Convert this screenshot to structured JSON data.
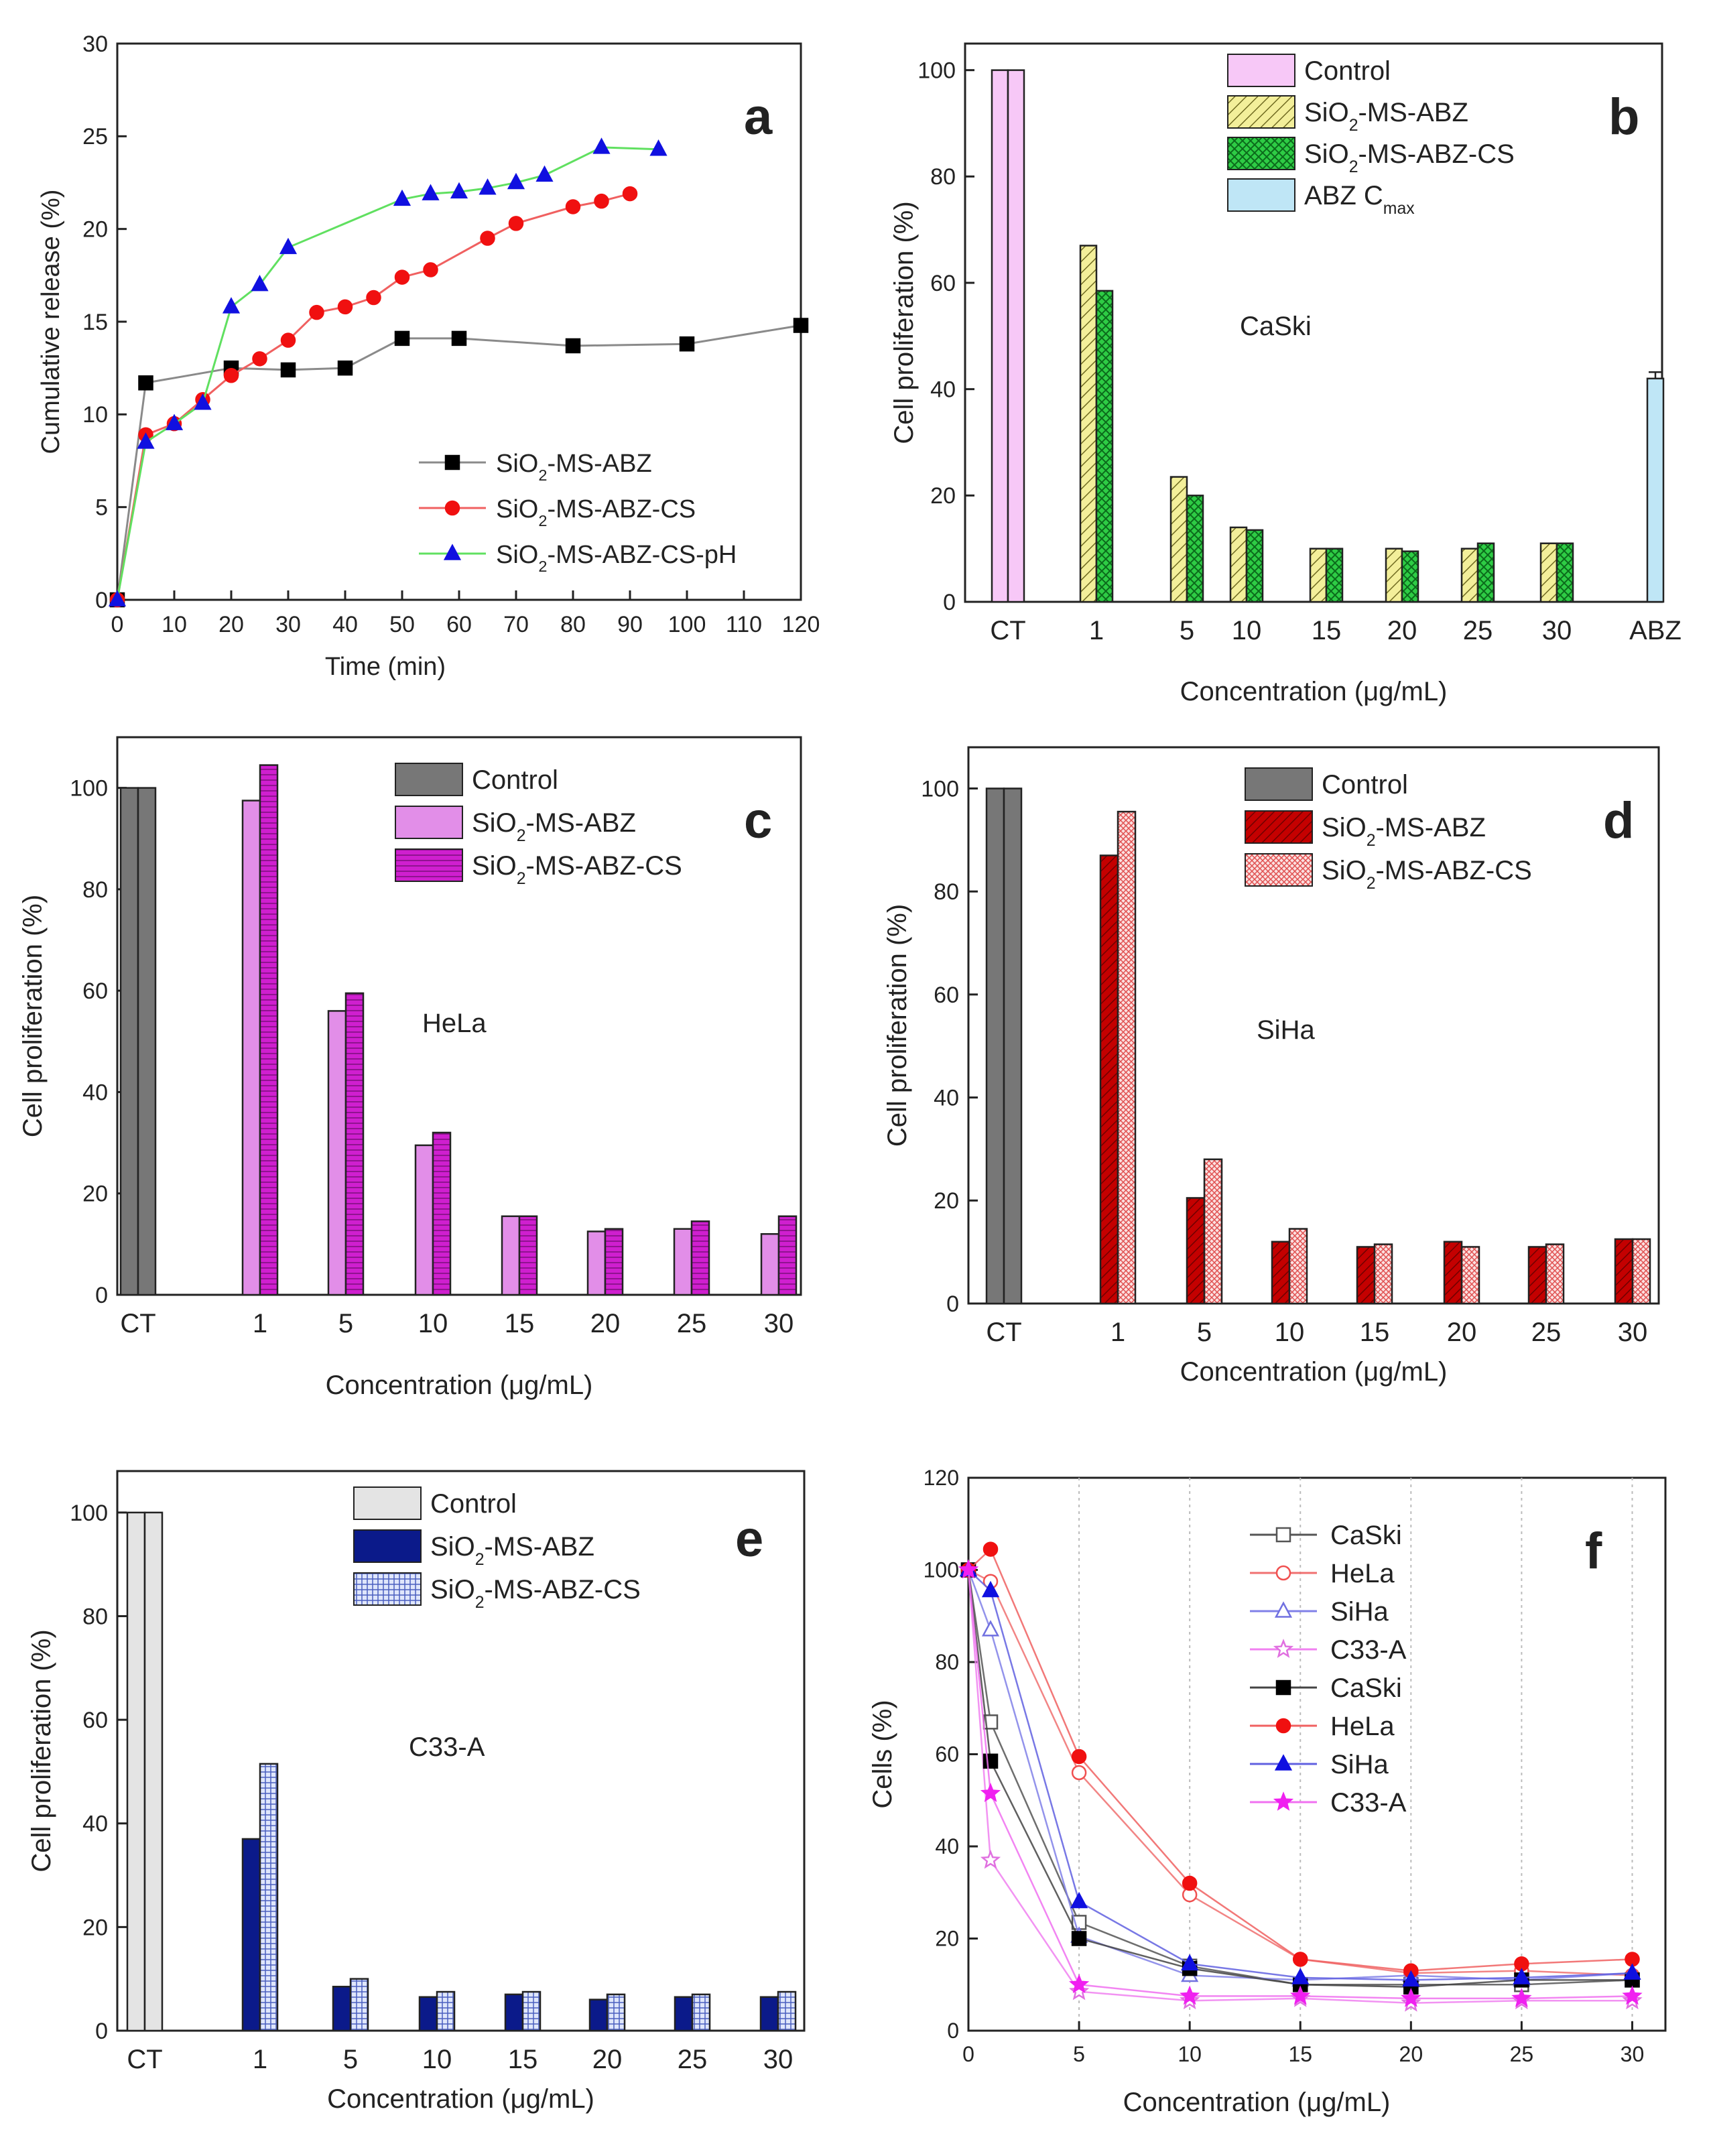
{
  "colors": {
    "black_series": "#000000",
    "red_series": "#f01010",
    "blue_series": "#1010e0",
    "green_line": "#60e060",
    "control_pink": "#f7c8f7",
    "yellow_hatch": "#f3ef9a",
    "green_bar": "#2ecc45",
    "abz_cyan": "#bfe6f6",
    "gray_control": "#777777",
    "violet": "#e28ee8",
    "magenta": "#cf1fcf",
    "dark_red": "#c40000",
    "pink_pattern": "#f6b0b0",
    "light_gray": "#e4e4e4",
    "navy": "#0b1a8a",
    "light_blue": "#b8c8f5"
  },
  "chart_data": [
    {
      "panel": "a",
      "type": "line",
      "title": "",
      "xlabel": "Time (min)",
      "ylabel": "Cumulative release (%)",
      "xlim": [
        0,
        120
      ],
      "ylim": [
        0,
        30
      ],
      "xticks": [
        "0",
        "10",
        "20",
        "30",
        "40",
        "50",
        "60",
        "70",
        "80",
        "90",
        "100",
        "110",
        "120"
      ],
      "yticks": [
        "0",
        "5",
        "10",
        "15",
        "20",
        "25",
        "30"
      ],
      "legend": [
        "SiO2-MS-ABZ",
        "SiO2-MS-ABZ-CS",
        "SiO2-MS-ABZ-CS-pH"
      ],
      "series": [
        {
          "name": "SiO2-MS-ABZ",
          "marker": "square",
          "color": "#000000",
          "line": "#8a8a8a",
          "x": [
            0,
            5,
            20,
            30,
            40,
            50,
            60,
            80,
            100,
            120
          ],
          "y": [
            0,
            11.7,
            12.5,
            12.4,
            12.5,
            14.1,
            14.1,
            13.7,
            13.8,
            14.8
          ]
        },
        {
          "name": "SiO2-MS-ABZ-CS",
          "marker": "circle",
          "color": "#f01010",
          "line": "#f06060",
          "x": [
            0,
            5,
            10,
            15,
            20,
            25,
            30,
            35,
            40,
            45,
            50,
            55,
            65,
            70,
            80,
            85,
            90
          ],
          "y": [
            0,
            8.9,
            9.5,
            10.8,
            12.1,
            13.0,
            14.0,
            15.5,
            15.8,
            16.3,
            17.4,
            17.8,
            19.5,
            20.3,
            21.2,
            21.5,
            21.9
          ]
        },
        {
          "name": "SiO2-MS-ABZ-CS-pH",
          "marker": "triangle",
          "color": "#1010e0",
          "line": "#60e060",
          "x": [
            0,
            5,
            10,
            15,
            20,
            25,
            30,
            50,
            55,
            60,
            65,
            70,
            75,
            85,
            95
          ],
          "y": [
            0,
            8.5,
            9.5,
            10.6,
            15.8,
            17.0,
            19.0,
            21.6,
            21.9,
            22.0,
            22.2,
            22.5,
            22.9,
            24.4,
            24.3
          ]
        }
      ]
    },
    {
      "panel": "b",
      "type": "bar",
      "annotation": "CaSki",
      "xlabel": "Concentration (μg/mL)",
      "ylabel": "Cell proliferation (%)",
      "ylim": [
        0,
        105
      ],
      "yticks": [
        "0",
        "20",
        "40",
        "60",
        "80",
        "100"
      ],
      "categories": [
        "CT",
        "1",
        "5",
        "10",
        "15",
        "20",
        "25",
        "30",
        "ABZ"
      ],
      "legend": [
        "Control",
        "SiO2-MS-ABZ",
        "SiO2-MS-ABZ-CS",
        "ABZ Cmax"
      ],
      "series": [
        {
          "name": "Control",
          "values": [
            100,
            null,
            null,
            null,
            null,
            null,
            null,
            null,
            null
          ]
        },
        {
          "name": "SiO2-MS-ABZ",
          "values": [
            null,
            67,
            23.5,
            14,
            10,
            10,
            10,
            11,
            null
          ]
        },
        {
          "name": "SiO2-MS-ABZ-CS",
          "values": [
            null,
            58.5,
            20,
            13.5,
            10,
            9.5,
            11,
            11,
            null
          ]
        },
        {
          "name": "ABZ Cmax",
          "values": [
            null,
            null,
            null,
            null,
            null,
            null,
            null,
            null,
            42
          ]
        }
      ]
    },
    {
      "panel": "c",
      "type": "bar",
      "annotation": "HeLa",
      "xlabel": "Concentration (μg/mL)",
      "ylabel": "Cell proliferation (%)",
      "ylim": [
        0,
        110
      ],
      "yticks": [
        "0",
        "20",
        "40",
        "60",
        "80",
        "100"
      ],
      "categories": [
        "CT",
        "1",
        "5",
        "10",
        "15",
        "20",
        "25",
        "30"
      ],
      "legend": [
        "Control",
        "SiO2-MS-ABZ",
        "SiO2-MS-ABZ-CS"
      ],
      "series": [
        {
          "name": "Control",
          "values": [
            100,
            null,
            null,
            null,
            null,
            null,
            null,
            null
          ]
        },
        {
          "name": "SiO2-MS-ABZ",
          "values": [
            null,
            97.5,
            56,
            29.5,
            15.5,
            12.5,
            13,
            12
          ]
        },
        {
          "name": "SiO2-MS-ABZ-CS",
          "values": [
            null,
            104.5,
            59.5,
            32,
            15.5,
            13,
            14.5,
            15.5
          ]
        }
      ]
    },
    {
      "panel": "d",
      "type": "bar",
      "annotation": "SiHa",
      "xlabel": "Concentration (μg/mL)",
      "ylabel": "Cell proliferation (%)",
      "ylim": [
        0,
        108
      ],
      "yticks": [
        "0",
        "20",
        "40",
        "60",
        "80",
        "100"
      ],
      "categories": [
        "CT",
        "1",
        "5",
        "10",
        "15",
        "20",
        "25",
        "30"
      ],
      "legend": [
        "Control",
        "SiO2-MS-ABZ",
        "SiO2-MS-ABZ-CS"
      ],
      "series": [
        {
          "name": "Control",
          "values": [
            100,
            null,
            null,
            null,
            null,
            null,
            null,
            null
          ]
        },
        {
          "name": "SiO2-MS-ABZ",
          "values": [
            null,
            87,
            20.5,
            12,
            11,
            12,
            11,
            12.5
          ]
        },
        {
          "name": "SiO2-MS-ABZ-CS",
          "values": [
            null,
            95.5,
            28,
            14.5,
            11.5,
            11,
            11.5,
            12.5
          ]
        }
      ]
    },
    {
      "panel": "e",
      "type": "bar",
      "annotation": "C33-A",
      "xlabel": "Concentration (μg/mL)",
      "ylabel": "Cell proliferation (%)",
      "ylim": [
        0,
        108
      ],
      "yticks": [
        "0",
        "20",
        "40",
        "60",
        "80",
        "100"
      ],
      "categories": [
        "CT",
        "1",
        "5",
        "10",
        "15",
        "20",
        "25",
        "30"
      ],
      "legend": [
        "Control",
        "SiO2-MS-ABZ",
        "SiO2-MS-ABZ-CS"
      ],
      "series": [
        {
          "name": "Control",
          "values": [
            100,
            null,
            null,
            null,
            null,
            null,
            null,
            null
          ]
        },
        {
          "name": "SiO2-MS-ABZ",
          "values": [
            null,
            37,
            8.5,
            6.5,
            7,
            6,
            6.5,
            6.5
          ]
        },
        {
          "name": "SiO2-MS-ABZ-CS",
          "values": [
            null,
            51.5,
            10,
            7.5,
            7.5,
            7,
            7,
            7.5
          ]
        }
      ]
    },
    {
      "panel": "f",
      "type": "line",
      "xlabel": "Concentration (μg/mL)",
      "ylabel": "Cells (%)",
      "xlim": [
        0,
        31.5
      ],
      "ylim": [
        0,
        120
      ],
      "xticks": [
        "0",
        "5",
        "10",
        "15",
        "20",
        "25",
        "30"
      ],
      "yticks": [
        "0",
        "20",
        "40",
        "60",
        "80",
        "100",
        "120"
      ],
      "x": [
        0,
        1,
        5,
        10,
        15,
        20,
        25,
        30
      ],
      "legend": [
        "CaSki",
        "HeLa",
        "SiHa",
        "C33-A",
        "CaSki",
        "HeLa",
        "SiHa",
        "C33-A"
      ],
      "series": [
        {
          "name": "CaSki",
          "marker": "square",
          "filled": false,
          "color": "#555555",
          "y": [
            100,
            67,
            23.5,
            14,
            10,
            10,
            10,
            11
          ]
        },
        {
          "name": "HeLa",
          "marker": "circle",
          "filled": false,
          "color": "#f05050",
          "y": [
            100,
            97.5,
            56,
            29.5,
            15.5,
            12.5,
            13,
            12
          ]
        },
        {
          "name": "SiHa",
          "marker": "triangle",
          "filled": false,
          "color": "#7070e0",
          "y": [
            100,
            87,
            20.5,
            12,
            11,
            12,
            11,
            12.5
          ]
        },
        {
          "name": "C33-A",
          "marker": "star",
          "filled": false,
          "color": "#e070e0",
          "y": [
            100,
            37,
            8.5,
            6.5,
            7,
            6,
            6.5,
            6.5
          ]
        },
        {
          "name": "CaSki",
          "marker": "square",
          "filled": true,
          "color": "#000000",
          "y": [
            100,
            58.5,
            20,
            13.5,
            10,
            9.5,
            11,
            11
          ]
        },
        {
          "name": "HeLa",
          "marker": "circle",
          "filled": true,
          "color": "#f01010",
          "y": [
            100,
            104.5,
            59.5,
            32,
            15.5,
            13,
            14.5,
            15.5
          ]
        },
        {
          "name": "SiHa",
          "marker": "triangle",
          "filled": true,
          "color": "#1010e0",
          "y": [
            100,
            95.5,
            28,
            14.5,
            11.5,
            11,
            11.5,
            12.5
          ]
        },
        {
          "name": "C33-A",
          "marker": "star",
          "filled": true,
          "color": "#f020f0",
          "y": [
            100,
            51.5,
            10,
            7.5,
            7.5,
            7,
            7,
            7.5
          ]
        }
      ]
    }
  ],
  "panel_letters": {
    "a": "a",
    "b": "b",
    "c": "c",
    "d": "d",
    "e": "e",
    "f": "f"
  }
}
